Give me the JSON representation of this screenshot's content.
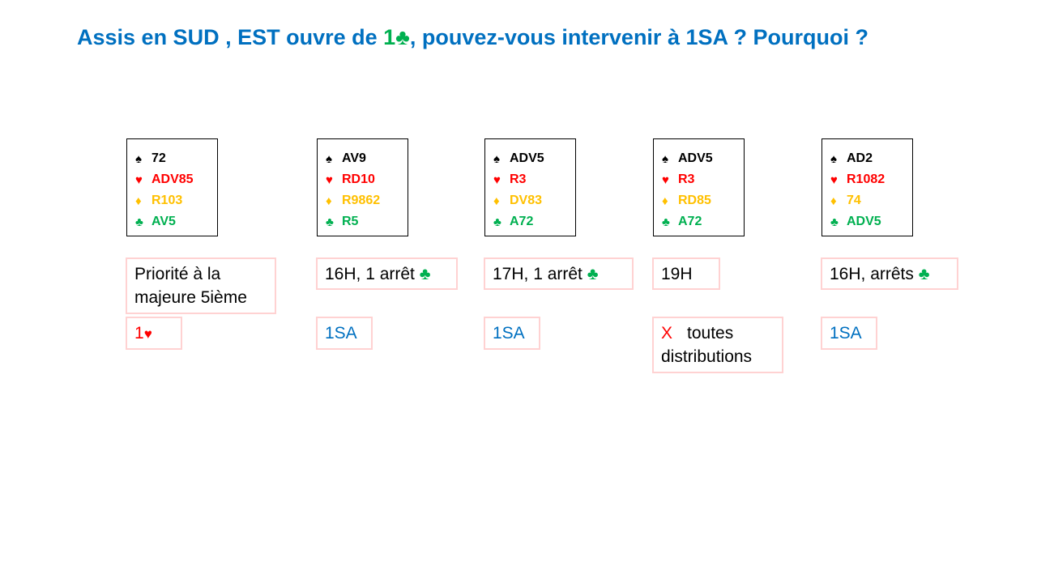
{
  "title": {
    "before": "Assis en SUD , EST ouvre de ",
    "bid": "1♣",
    "after": ", pouvez-vous intervenir à 1SA ? Pourquoi ?"
  },
  "colors": {
    "title": "#0070c0",
    "spades": "#000000",
    "hearts": "#ff0000",
    "diamonds": "#ffc000",
    "clubs": "#00b050",
    "box_border": "#ffd2d2"
  },
  "suit_symbols": {
    "spades": "♠",
    "hearts": "♥",
    "diamonds": "♦",
    "clubs": "♣"
  },
  "hands": [
    {
      "spades": "72",
      "hearts": "ADV85",
      "diamonds": "R103",
      "clubs": "AV5",
      "reason_line1": "Priorité à la",
      "reason_line2": "majeure 5ième",
      "bid_main": "1",
      "bid_suit": "♥"
    },
    {
      "spades": "AV9",
      "hearts": "RD10",
      "diamonds": "R9862",
      "clubs": "R5",
      "reason": "16H, 1 arrêt ",
      "reason_suit": "♣",
      "bid": "1SA"
    },
    {
      "spades": "ADV5",
      "hearts": "R3",
      "diamonds": "DV83",
      "clubs": "A72",
      "reason": "17H, 1 arrêt ",
      "reason_suit": "♣",
      "bid": "1SA"
    },
    {
      "spades": "ADV5",
      "hearts": "R3",
      "diamonds": "RD85",
      "clubs": "A72",
      "reason": "19H",
      "bid_x": "X",
      "bid_line1": "toutes",
      "bid_line2": "distributions"
    },
    {
      "spades": "AD2",
      "hearts": "R1082",
      "diamonds": "74",
      "clubs": "ADV5",
      "reason": "16H, arrêts ",
      "reason_suit": "♣",
      "bid": "1SA"
    }
  ]
}
